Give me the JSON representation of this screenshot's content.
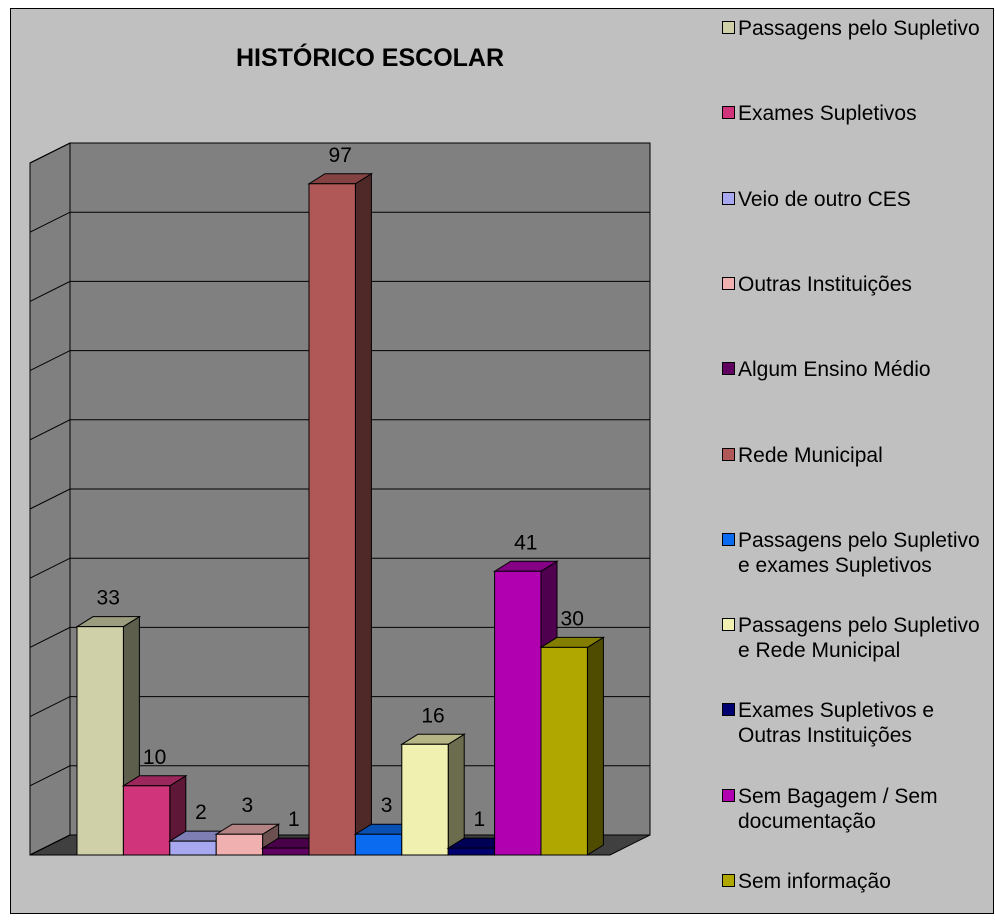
{
  "chart_data": {
    "type": "bar3d",
    "title": "HISTÓRICO ESCOLAR",
    "series": [
      {
        "name": "Passagens pelo Supletivo",
        "color": "#d0d0a8",
        "values": [
          33
        ]
      },
      {
        "name": "Exames Supletivos",
        "color": "#d0347a",
        "values": [
          10
        ]
      },
      {
        "name": "Veio de outro CES",
        "color": "#a8a8f0",
        "values": [
          2
        ]
      },
      {
        "name": "Outras Instituições",
        "color": "#f0b0b0",
        "values": [
          3
        ]
      },
      {
        "name": "Algum Ensino Médio",
        "color": "#600060",
        "values": [
          1
        ]
      },
      {
        "name": "Rede Municipal",
        "color": "#b05858",
        "values": [
          97
        ]
      },
      {
        "name": "Passagens pelo Supletivo e exames Supletivos",
        "color": "#0a6af0",
        "values": [
          3
        ]
      },
      {
        "name": "Passagens pelo Supletivo e Rede Municipal",
        "color": "#f0f0b0",
        "values": [
          16
        ]
      },
      {
        "name": "Exames Supletivos e Outras Instituições",
        "color": "#000070",
        "values": [
          1
        ]
      },
      {
        "name": "Sem Bagagem / Sem documentação",
        "color": "#b000b0",
        "values": [
          41
        ]
      },
      {
        "name": "Sem informação",
        "color": "#b0a800",
        "values": [
          30
        ]
      }
    ],
    "ylim": [
      0,
      100
    ],
    "yticks": [
      0,
      10,
      20,
      30,
      40,
      50,
      60,
      70,
      80,
      90,
      100
    ],
    "grid": true
  }
}
